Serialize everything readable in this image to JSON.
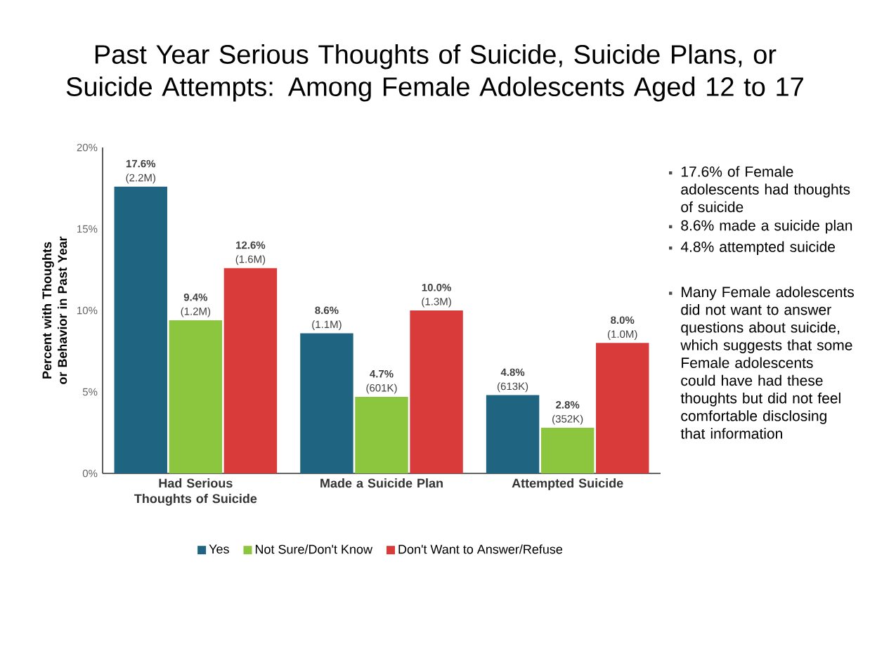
{
  "chart_data": {
    "type": "bar",
    "title": "Past Year Serious Thoughts of Suicide, Suicide Plans, or Suicide Attempts: Among Female Adolescents Aged 12 to 17",
    "ylabel": "Percent with Thoughts or Behavior in Past Year",
    "categories": [
      "Had Serious Thoughts of Suicide",
      "Made a Suicide Plan",
      "Attempted Suicide"
    ],
    "series": [
      {
        "name": "Yes",
        "color": "#1f6480",
        "values": [
          17.6,
          8.6,
          4.8
        ],
        "value_labels": [
          "**17.6%** (2.2M)",
          "**8.6%** (1.1M)",
          "**4.8%** (613K)"
        ]
      },
      {
        "name": "Not Sure/Don't Know",
        "color": "#8cc63f",
        "values": [
          9.4,
          4.7,
          2.8
        ],
        "value_labels": [
          "**9.4%** (1.2M)",
          "**4.7%** (601K)",
          "**2.8%** (352K)"
        ]
      },
      {
        "name": "Don't Want to Answer/Refuse",
        "color": "#d93a3a",
        "values": [
          12.6,
          10.0,
          8.0
        ],
        "value_labels": [
          "**12.6%** (1.6M)",
          "**10.0%** (1.3M)",
          "**8.0%** (1.0M)"
        ]
      }
    ],
    "ylim": [
      0,
      20
    ],
    "yticks": [
      {
        "value": 0,
        "label": "0%"
      },
      {
        "value": 5,
        "label": "5%"
      },
      {
        "value": 10,
        "label": "10%"
      },
      {
        "value": 15,
        "label": "15%"
      },
      {
        "value": 20,
        "label": "20%"
      }
    ],
    "grid": false,
    "legend": "bottom",
    "annotations": [
      "17.6% of Female adolescents had thoughts of suicide",
      "8.6% made a suicide plan",
      "4.8% attempted suicide",
      "Many Female adolescents did not want to answer questions about suicide, which suggests that some Female adolescents could have had these thoughts but did not feel comfortable disclosing that information"
    ]
  }
}
